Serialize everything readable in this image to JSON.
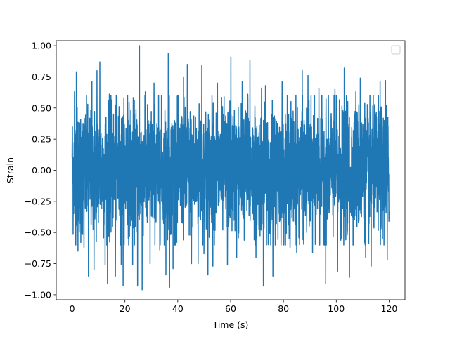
{
  "chart_data": {
    "type": "line",
    "title": "",
    "xlabel": "Time (s)",
    "ylabel": "Strain",
    "xlim": [
      -6,
      126
    ],
    "ylim": [
      -1.04,
      1.04
    ],
    "grid": false,
    "legend": {
      "placement": "top-right",
      "entries": []
    },
    "x_ticks": [
      0,
      20,
      40,
      60,
      80,
      100,
      120
    ],
    "x_tick_labels": [
      "0",
      "20",
      "40",
      "60",
      "80",
      "100",
      "120"
    ],
    "y_ticks": [
      1.0,
      0.75,
      0.5,
      0.25,
      0.0,
      -0.25,
      -0.5,
      -0.75,
      -1.0
    ],
    "y_tick_labels": [
      "1.00",
      "0.75",
      "0.50",
      "0.25",
      "0.00",
      "−0.25",
      "−0.50",
      "−0.75",
      "−1.00"
    ],
    "series": [
      {
        "color": "#1f77b4",
        "x_range": [
          0,
          120
        ],
        "values_description": "dense noise-like strain signal",
        "sample_peaks": [
          {
            "x": 0.9,
            "y": 0.63
          },
          {
            "x": 1.6,
            "y": 0.79
          },
          {
            "x": 2.2,
            "y": -0.65
          },
          {
            "x": 3.3,
            "y": -0.58
          },
          {
            "x": 4.5,
            "y": -0.62
          },
          {
            "x": 6.2,
            "y": -0.85
          },
          {
            "x": 7.5,
            "y": 0.71
          },
          {
            "x": 8.3,
            "y": -0.8
          },
          {
            "x": 9.4,
            "y": 0.8
          },
          {
            "x": 10.5,
            "y": 0.87
          },
          {
            "x": 12.5,
            "y": -0.76
          },
          {
            "x": 13.4,
            "y": -0.91
          },
          {
            "x": 14.1,
            "y": 0.61
          },
          {
            "x": 16.4,
            "y": -0.85
          },
          {
            "x": 18.6,
            "y": -0.76
          },
          {
            "x": 19.3,
            "y": -0.93
          },
          {
            "x": 21.0,
            "y": 0.6
          },
          {
            "x": 22.9,
            "y": -0.76
          },
          {
            "x": 24.8,
            "y": -0.93
          },
          {
            "x": 25.5,
            "y": 1.0
          },
          {
            "x": 26.5,
            "y": -0.96
          },
          {
            "x": 27.7,
            "y": 0.63
          },
          {
            "x": 29.5,
            "y": -0.75
          },
          {
            "x": 31.0,
            "y": 0.7
          },
          {
            "x": 33.2,
            "y": -0.64
          },
          {
            "x": 35.5,
            "y": -0.84
          },
          {
            "x": 36.4,
            "y": 0.94
          },
          {
            "x": 36.9,
            "y": -0.94
          },
          {
            "x": 38.2,
            "y": -0.79
          },
          {
            "x": 40.0,
            "y": 0.6
          },
          {
            "x": 42.2,
            "y": 0.75
          },
          {
            "x": 43.6,
            "y": 0.85
          },
          {
            "x": 45.2,
            "y": -0.75
          },
          {
            "x": 47.7,
            "y": -0.75
          },
          {
            "x": 49.1,
            "y": 0.84
          },
          {
            "x": 49.9,
            "y": -0.67
          },
          {
            "x": 51.4,
            "y": -0.84
          },
          {
            "x": 53.3,
            "y": -0.77
          },
          {
            "x": 55.0,
            "y": 0.7
          },
          {
            "x": 58.8,
            "y": -0.76
          },
          {
            "x": 60.1,
            "y": 0.91
          },
          {
            "x": 62.3,
            "y": -0.7
          },
          {
            "x": 64.4,
            "y": 0.71
          },
          {
            "x": 66.5,
            "y": 0.61
          },
          {
            "x": 67.3,
            "y": 0.88
          },
          {
            "x": 69.6,
            "y": -0.7
          },
          {
            "x": 71.7,
            "y": 0.66
          },
          {
            "x": 72.4,
            "y": -0.93
          },
          {
            "x": 73.2,
            "y": 0.68
          },
          {
            "x": 76.0,
            "y": -0.85
          },
          {
            "x": 79.5,
            "y": 0.71
          },
          {
            "x": 82.5,
            "y": -0.62
          },
          {
            "x": 85.0,
            "y": -0.66
          },
          {
            "x": 87.1,
            "y": 0.8
          },
          {
            "x": 89.3,
            "y": 0.76
          },
          {
            "x": 91.0,
            "y": -0.66
          },
          {
            "x": 93.4,
            "y": 0.66
          },
          {
            "x": 96.0,
            "y": -0.91
          },
          {
            "x": 99.5,
            "y": 0.65
          },
          {
            "x": 100.5,
            "y": -0.81
          },
          {
            "x": 102.1,
            "y": -0.55
          },
          {
            "x": 103.0,
            "y": 0.82
          },
          {
            "x": 105.0,
            "y": -0.86
          },
          {
            "x": 107.4,
            "y": 0.63
          },
          {
            "x": 109.1,
            "y": 0.74
          },
          {
            "x": 111.1,
            "y": -0.7
          },
          {
            "x": 113.2,
            "y": -0.77
          },
          {
            "x": 116.6,
            "y": 0.71
          },
          {
            "x": 117.5,
            "y": -0.55
          },
          {
            "x": 118.6,
            "y": 0.72
          },
          {
            "x": 119.3,
            "y": -0.72
          },
          {
            "x": 120.0,
            "y": 0.3
          }
        ]
      }
    ]
  }
}
